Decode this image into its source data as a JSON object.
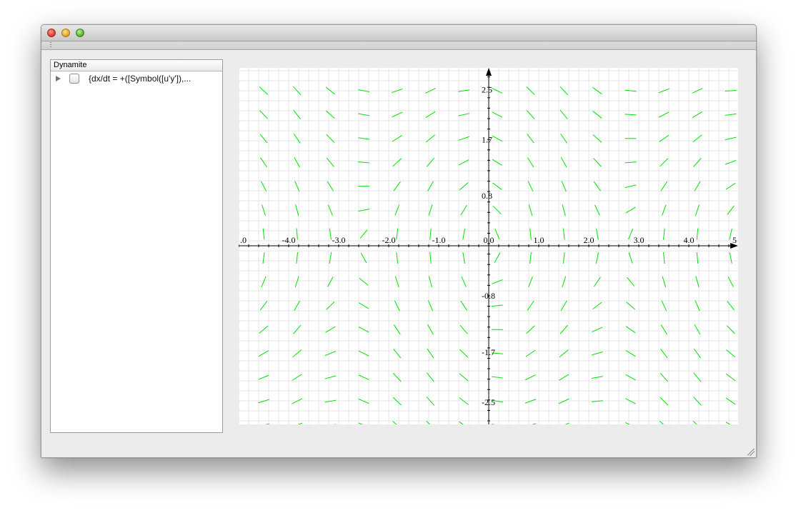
{
  "sidebar": {
    "header": "Dynamite",
    "items": [
      {
        "label": "{dx/dt = +([Symbol([u'y']),...",
        "checked": false,
        "expanded": false
      }
    ]
  },
  "chart_data": {
    "type": "scatter",
    "subtype": "direction-field",
    "title": "",
    "xlabel": "",
    "ylabel": "",
    "xlim": [
      -5.0,
      5.0
    ],
    "ylim": [
      -3.6,
      3.6
    ],
    "x_ticks": [
      ".0",
      "-4.0",
      "-3.0",
      "-2.0",
      "-1.0",
      "0.0",
      "1.0",
      "2.0",
      "3.0",
      "4.0",
      "5"
    ],
    "y_ticks": [
      "2.5",
      "1.7",
      "0.8",
      "0.0",
      "-0.8",
      "-1.7",
      "-2.5"
    ],
    "grid": true,
    "field_color": "#00e000",
    "grid_color": "#e6e6e6"
  }
}
